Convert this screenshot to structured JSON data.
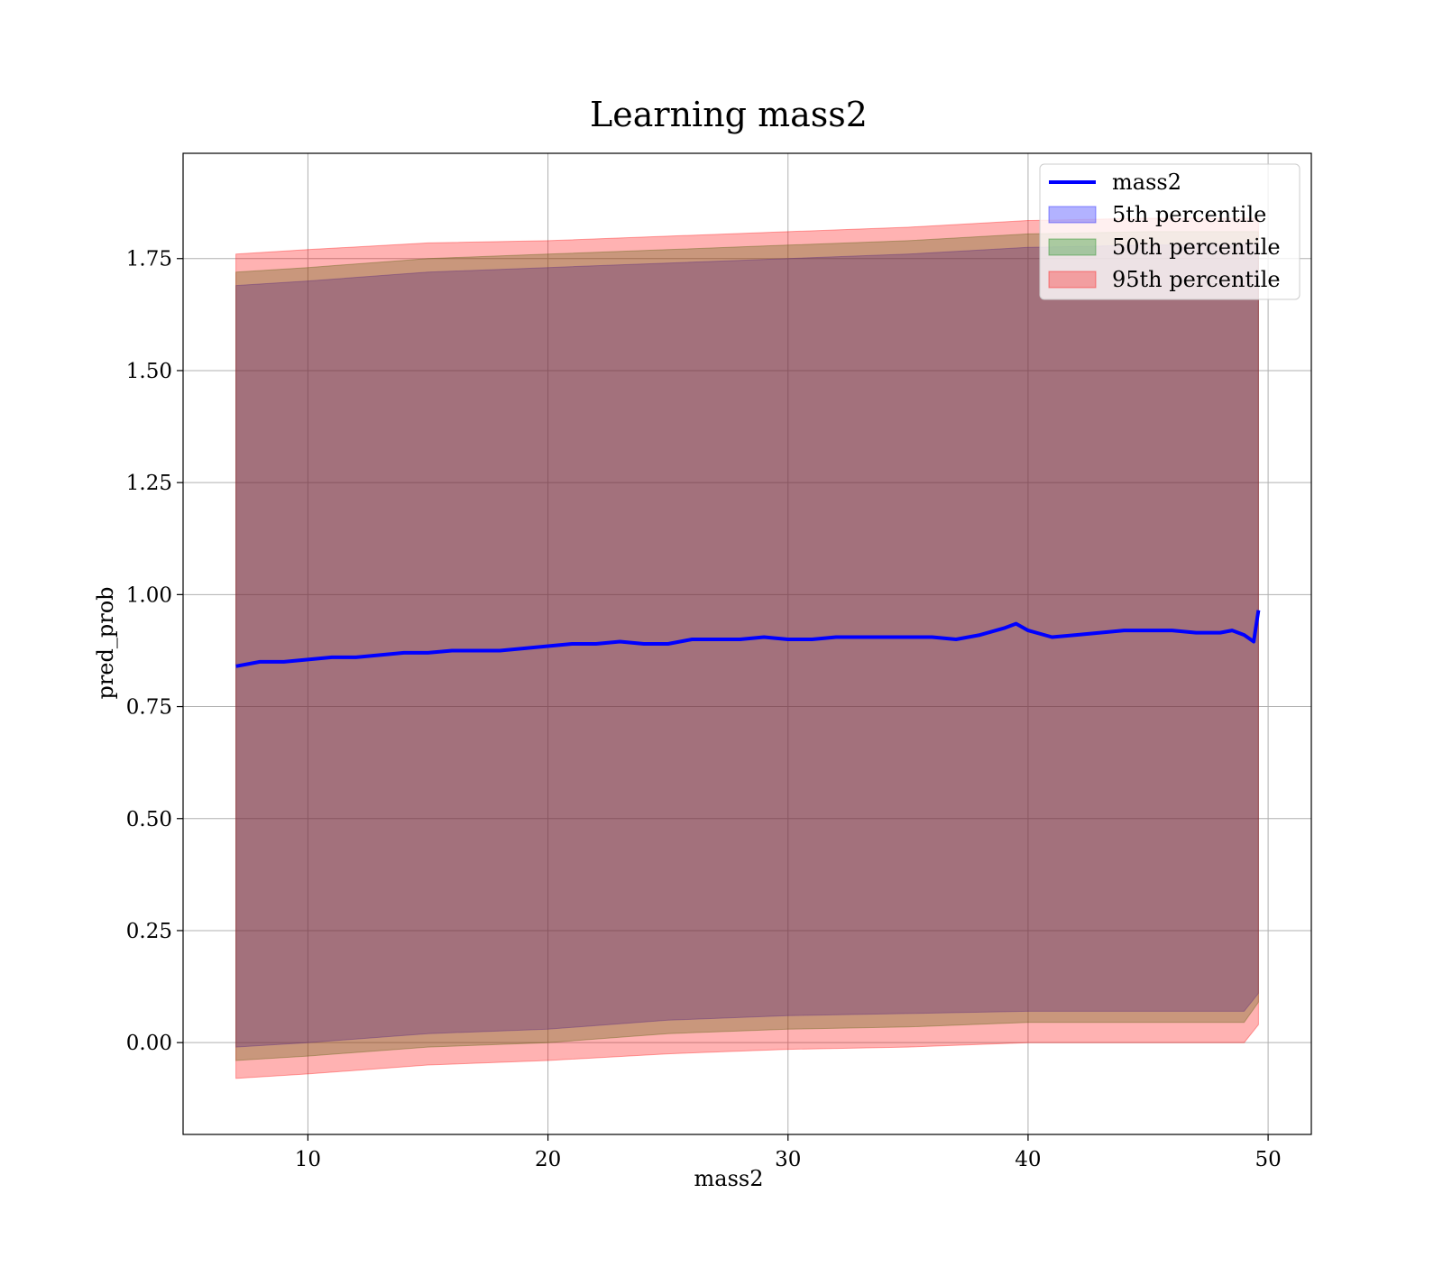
{
  "chart_data": {
    "type": "line",
    "title": "Learning mass2",
    "xlabel": "mass2",
    "ylabel": "pred_prob",
    "xlim": [
      4.8,
      51.8
    ],
    "ylim": [
      -0.205,
      1.985
    ],
    "grid": true,
    "legend_position": "top-right",
    "x_ticks": [
      10,
      20,
      30,
      40,
      50
    ],
    "x_tick_labels": [
      "10",
      "20",
      "30",
      "40",
      "50"
    ],
    "y_ticks": [
      0.0,
      0.25,
      0.5,
      0.75,
      1.0,
      1.25,
      1.5,
      1.75
    ],
    "y_tick_labels": [
      "0.00",
      "0.25",
      "0.50",
      "0.75",
      "1.00",
      "1.25",
      "1.50",
      "1.75"
    ],
    "legend": [
      {
        "label": "mass2",
        "kind": "line",
        "color": "#0000ff"
      },
      {
        "label": "5th percentile",
        "kind": "patch",
        "color": "#0000ff"
      },
      {
        "label": "50th percentile",
        "kind": "patch",
        "color": "#008000"
      },
      {
        "label": "95th percentile",
        "kind": "patch",
        "color": "#ff0000"
      }
    ],
    "series": [
      {
        "name": "mass2",
        "color": "#0000ff",
        "x": [
          7.0,
          8.0,
          9.0,
          10.0,
          11.0,
          12.0,
          13.0,
          14.0,
          15.0,
          16.0,
          17.0,
          18.0,
          19.0,
          20.0,
          21.0,
          22.0,
          23.0,
          24.0,
          25.0,
          26.0,
          27.0,
          28.0,
          29.0,
          30.0,
          31.0,
          32.0,
          33.0,
          34.0,
          35.0,
          36.0,
          37.0,
          38.0,
          39.0,
          39.5,
          40.0,
          41.0,
          42.0,
          43.0,
          44.0,
          45.0,
          46.0,
          47.0,
          48.0,
          48.5,
          49.0,
          49.4,
          49.6
        ],
        "y": [
          0.84,
          0.85,
          0.85,
          0.855,
          0.86,
          0.86,
          0.865,
          0.87,
          0.87,
          0.875,
          0.875,
          0.875,
          0.88,
          0.885,
          0.89,
          0.89,
          0.895,
          0.89,
          0.89,
          0.9,
          0.9,
          0.9,
          0.905,
          0.9,
          0.9,
          0.905,
          0.905,
          0.905,
          0.905,
          0.905,
          0.9,
          0.91,
          0.925,
          0.935,
          0.92,
          0.905,
          0.91,
          0.915,
          0.92,
          0.92,
          0.92,
          0.915,
          0.915,
          0.92,
          0.91,
          0.895,
          0.965
        ]
      }
    ],
    "bands": [
      {
        "name": "5th percentile",
        "color": "#0000ff",
        "x": [
          7.0,
          10.0,
          15.0,
          20.0,
          25.0,
          30.0,
          35.0,
          40.0,
          45.0,
          49.0,
          49.6
        ],
        "lower": [
          -0.01,
          0.0,
          0.02,
          0.03,
          0.05,
          0.06,
          0.065,
          0.07,
          0.07,
          0.07,
          0.11
        ],
        "upper": [
          1.69,
          1.7,
          1.72,
          1.73,
          1.74,
          1.75,
          1.76,
          1.775,
          1.78,
          1.78,
          1.78
        ]
      },
      {
        "name": "50th percentile",
        "color": "#008000",
        "x": [
          7.0,
          10.0,
          15.0,
          20.0,
          25.0,
          30.0,
          35.0,
          40.0,
          45.0,
          49.0,
          49.6
        ],
        "lower": [
          -0.04,
          -0.03,
          -0.01,
          0.0,
          0.02,
          0.03,
          0.035,
          0.045,
          0.045,
          0.045,
          0.09
        ],
        "upper": [
          1.72,
          1.73,
          1.75,
          1.76,
          1.77,
          1.78,
          1.79,
          1.805,
          1.81,
          1.81,
          1.81
        ]
      },
      {
        "name": "95th percentile",
        "color": "#ff0000",
        "x": [
          7.0,
          10.0,
          15.0,
          20.0,
          25.0,
          30.0,
          35.0,
          40.0,
          45.0,
          49.0,
          49.6
        ],
        "lower": [
          -0.08,
          -0.07,
          -0.05,
          -0.04,
          -0.025,
          -0.015,
          -0.01,
          0.0,
          0.0,
          0.0,
          0.04
        ],
        "upper": [
          1.76,
          1.77,
          1.785,
          1.79,
          1.8,
          1.81,
          1.82,
          1.835,
          1.84,
          1.84,
          1.84
        ]
      }
    ]
  }
}
